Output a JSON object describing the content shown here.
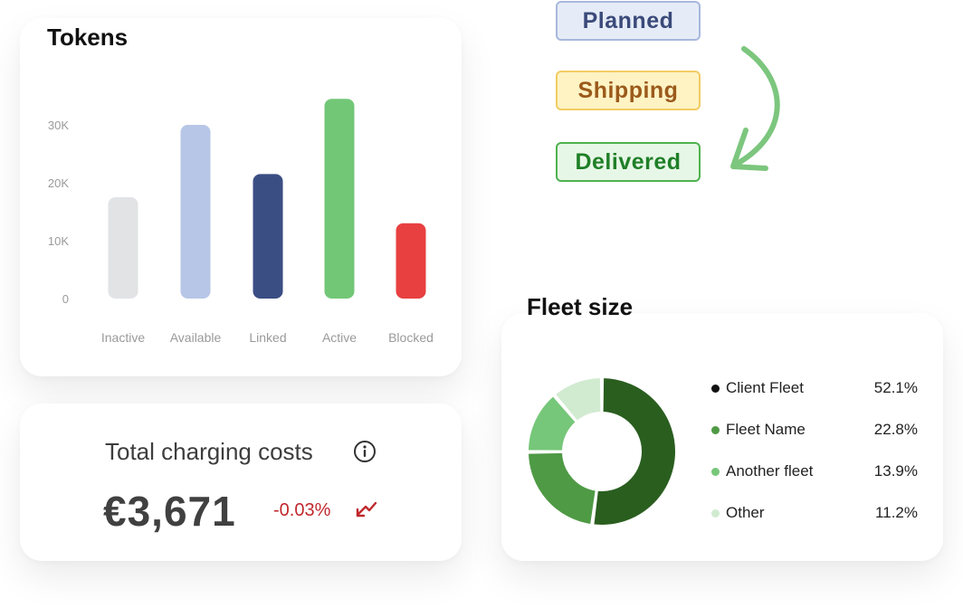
{
  "tokens": {
    "title": "Tokens",
    "chart_data": {
      "type": "bar",
      "title": "Tokens",
      "categories": [
        "Inactive",
        "Available",
        "Linked",
        "Active",
        "Blocked"
      ],
      "values": [
        17500,
        30000,
        21500,
        34500,
        13000
      ],
      "colors": [
        "#e2e3e5",
        "#b7c6e7",
        "#3b4e84",
        "#72c777",
        "#e84040"
      ],
      "yticks": [
        "0",
        "10K",
        "20K",
        "30K"
      ],
      "ytick_values": [
        0,
        10000,
        20000,
        30000
      ],
      "ylim": [
        0,
        35000
      ],
      "grid": false
    }
  },
  "statuses": {
    "planned": "Planned",
    "shipping": "Shipping",
    "delivered": "Delivered"
  },
  "costs": {
    "title": "Total charging costs",
    "value": "€3,671",
    "change": "-0.03%",
    "info_icon": "info-icon",
    "trend_icon": "trend-down-icon"
  },
  "fleet": {
    "title": "Fleet size",
    "chart_data": {
      "type": "pie",
      "labels": [
        "Client Fleet",
        "Fleet Name",
        "Another fleet",
        "Other"
      ],
      "values": [
        52.1,
        22.8,
        13.9,
        11.2
      ],
      "value_labels": [
        "52.1%",
        "22.8%",
        "13.9%",
        "11.2%"
      ],
      "colors": [
        "#2a5e1f",
        "#4f9a45",
        "#76c779",
        "#d1ebd1"
      ],
      "legend": "right"
    }
  }
}
